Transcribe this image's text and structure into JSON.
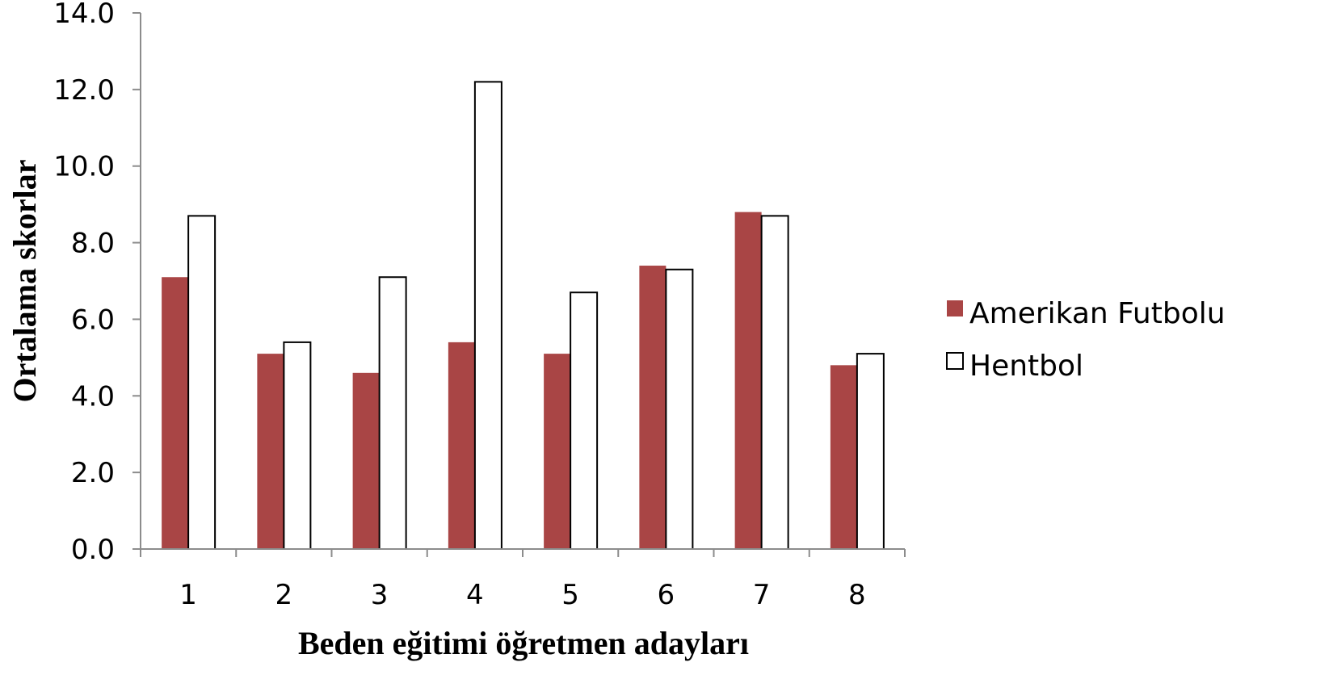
{
  "chart_data": {
    "type": "bar",
    "title": "",
    "xlabel": "Beden eğitimi öğretmen adayları",
    "ylabel": "Ortalama skorlar",
    "categories": [
      "1",
      "2",
      "3",
      "4",
      "5",
      "6",
      "7",
      "8"
    ],
    "series": [
      {
        "name": "Amerikan Futbolu",
        "color": "#a94545",
        "values": [
          7.1,
          5.1,
          4.6,
          5.4,
          5.1,
          7.4,
          8.8,
          4.8
        ]
      },
      {
        "name": "Hentbol",
        "color": "#ffffff",
        "values": [
          8.7,
          5.4,
          7.1,
          12.2,
          6.7,
          7.3,
          8.7,
          5.1
        ]
      }
    ],
    "yticks": [
      "0.0",
      "2.0",
      "4.0",
      "6.0",
      "8.0",
      "10.0",
      "12.0",
      "14.0"
    ],
    "ylim": [
      0,
      14
    ],
    "grid": false,
    "legend_position": "right"
  }
}
